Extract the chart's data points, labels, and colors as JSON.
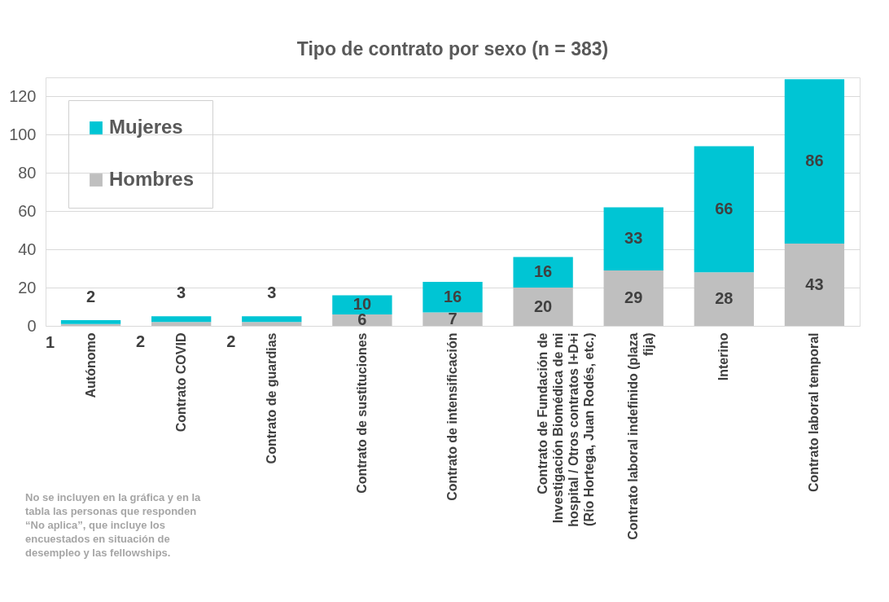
{
  "chart_data": {
    "type": "bar",
    "title": "Tipo de contrato por sexo (n = 383)",
    "categories": [
      "Autónomo",
      "Contrato COVID",
      "Contrato de guardias",
      "Contrato de sustituciones",
      "Contrato de intensificación",
      "Contrato de Fundación de Investigación Biomédica de mi hospital / Otros contratos I+D+i (Río Hortega, Juan Rodés, etc.)",
      "Contrato laboral indefinido (plaza fija)",
      "Interino",
      "Contrato laboral temporal"
    ],
    "series": [
      {
        "name": "Hombres",
        "color": "#bfbfbf",
        "values": [
          1,
          2,
          2,
          6,
          7,
          20,
          29,
          28,
          43
        ]
      },
      {
        "name": "Mujeres",
        "color": "#00c5d4",
        "values": [
          2,
          3,
          3,
          10,
          16,
          16,
          33,
          66,
          86
        ]
      }
    ],
    "stacked": true,
    "ylim": [
      0,
      130
    ],
    "yticks": [
      0,
      20,
      40,
      60,
      80,
      100,
      120
    ],
    "grid": "y",
    "legend": "top left",
    "data_labels": true,
    "annotations": [
      "No se incluyen en la gráfica y en la\ntabla las personas que responden\n“No aplica”, que incluye los\nencuestados en situación de\ndesempleo y las fellowships."
    ]
  }
}
